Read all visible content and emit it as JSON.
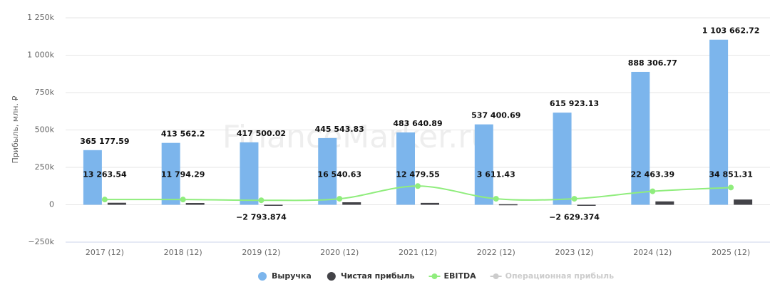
{
  "chart_data": {
    "type": "bar",
    "y_label": "Прибыль, млн. ₽",
    "watermark": "FinanceMarker.ru",
    "categories": [
      "2017 (12)",
      "2018 (12)",
      "2019 (12)",
      "2020 (12)",
      "2021 (12)",
      "2022 (12)",
      "2023 (12)",
      "2024 (12)",
      "2025 (12)"
    ],
    "series": [
      {
        "name": "Выручка",
        "color": "#7cb5ec",
        "kind": "bar",
        "values": [
          365177.59,
          413562.2,
          417500.02,
          445543.83,
          483640.89,
          537400.69,
          615923.13,
          888306.77,
          1103662.72
        ],
        "value_labels": [
          "365 177.59",
          "413 562.2",
          "417 500.02",
          "445 543.83",
          "483 640.89",
          "537 400.69",
          "615 923.13",
          "888 306.77",
          "1 103 662.72"
        ]
      },
      {
        "name": "Чистая прибыль",
        "color": "#434348",
        "kind": "bar",
        "values": [
          13263.54,
          11794.29,
          -2793.874,
          16540.63,
          12479.55,
          3611.43,
          -2629.374,
          22463.39,
          34851.31
        ],
        "value_labels": [
          "13 263.54",
          "11 794.29",
          "−2 793.874",
          "16 540.63",
          "12 479.55",
          "3 611.43",
          "−2 629.374",
          "22 463.39",
          "34 851.31"
        ]
      },
      {
        "name": "EBITDA",
        "color": "#90ed7d",
        "kind": "line",
        "values": [
          35000,
          35000,
          30000,
          40000,
          125000,
          40000,
          40000,
          90000,
          115000
        ]
      },
      {
        "name": "Операционная прибыль",
        "color": "#cccccc",
        "kind": "line",
        "visible": false,
        "values": [
          null,
          null,
          null,
          null,
          null,
          null,
          null,
          null,
          null
        ]
      }
    ],
    "ylim": [
      -250000,
      1250000
    ],
    "yticks": [
      {
        "value": -250000,
        "label": "−250k"
      },
      0,
      {
        "value": 250000,
        "label": "250k"
      },
      {
        "value": 500000,
        "label": "500k"
      },
      {
        "value": 750000,
        "label": "750k"
      },
      {
        "value": 1000000,
        "label": "1 000k"
      },
      {
        "value": 1250000,
        "label": "1 250k"
      }
    ],
    "grid": true,
    "legend": "bottom"
  }
}
